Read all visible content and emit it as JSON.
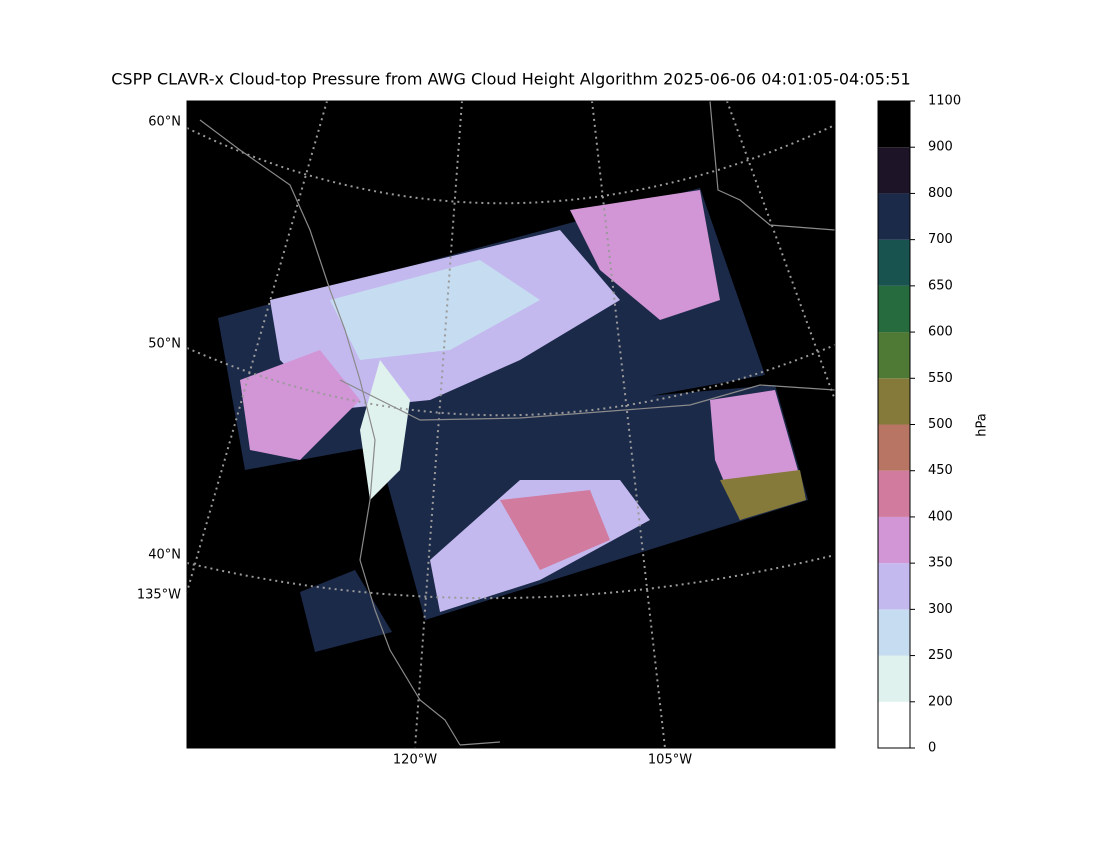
{
  "title": "CSPP CLAVR-x Cloud-top Pressure from AWG Cloud Height Algorithm 2025-06-06 04:01:05-04:05:51",
  "map": {
    "lat_labels": [
      "60°N",
      "50°N",
      "40°N"
    ],
    "lon_labels": [
      "135°W",
      "120°W",
      "105°W"
    ]
  },
  "colorbar": {
    "label": "hPa",
    "ticks": [
      0,
      200,
      250,
      300,
      350,
      400,
      450,
      500,
      550,
      600,
      650,
      700,
      800,
      900,
      1100
    ],
    "colors": [
      "#ffffff",
      "#dff2ee",
      "#c6dcf0",
      "#c4b9ef",
      "#d295d6",
      "#d17b9f",
      "#b87564",
      "#857a3a",
      "#4e7a35",
      "#256b3d",
      "#19534f",
      "#1c2a4a",
      "#1d1428",
      "#000000"
    ]
  }
}
